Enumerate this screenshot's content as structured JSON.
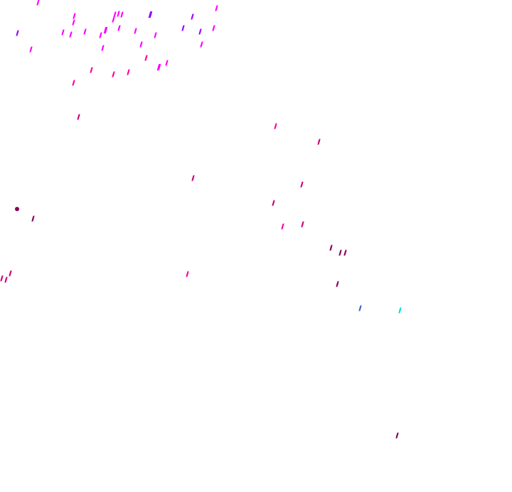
{
  "background": "#ffffff",
  "palette": {
    "magenta": "#ff00ff",
    "violet": "#9900ff",
    "pink": "#ff0099",
    "deep_pink": "#cc0077",
    "maroon": "#880055",
    "blue": "#3366cc",
    "cyan": "#00dddd"
  }
}
